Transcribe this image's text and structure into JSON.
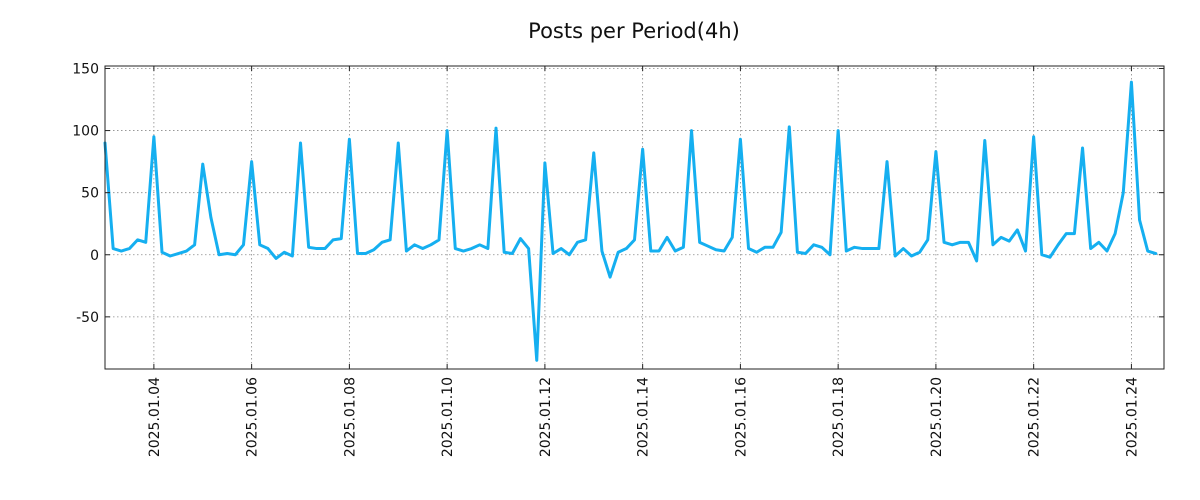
{
  "chart_data": {
    "type": "line",
    "title": "Posts per Period(4h)",
    "xlabel": "",
    "ylabel": "",
    "grid": true,
    "ylim": [
      -92,
      152
    ],
    "yticks": [
      150,
      100,
      50,
      0,
      -50
    ],
    "ytick_labels": [
      "150",
      "100",
      "50",
      "0",
      "-50"
    ],
    "x_start": "2025.01.03 00:00",
    "x_step_hours": 4,
    "xlim_steps": [
      0,
      130
    ],
    "xticks": [
      6,
      18,
      30,
      42,
      54,
      66,
      78,
      90,
      102,
      114,
      126
    ],
    "xtick_labels": [
      "2025.01.04",
      "2025.01.06",
      "2025.01.08",
      "2025.01.10",
      "2025.01.12",
      "2025.01.14",
      "2025.01.16",
      "2025.01.18",
      "2025.01.20",
      "2025.01.22",
      "2025.01.24"
    ],
    "series": [
      {
        "name": "Posts",
        "color": "#15aff0",
        "values": [
          90,
          5,
          3,
          5,
          12,
          10,
          95,
          2,
          -1,
          1,
          3,
          8,
          73,
          30,
          0,
          1,
          0,
          8,
          75,
          8,
          5,
          -3,
          2,
          -1,
          90,
          6,
          5,
          5,
          12,
          13,
          93,
          1,
          1,
          4,
          10,
          12,
          90,
          3,
          8,
          5,
          8,
          12,
          100,
          5,
          3,
          5,
          8,
          5,
          102,
          2,
          1,
          13,
          5,
          -85,
          74,
          1,
          5,
          0,
          10,
          12,
          82,
          3,
          -18,
          2,
          5,
          12,
          85,
          3,
          3,
          14,
          3,
          6,
          100,
          10,
          7,
          4,
          3,
          14,
          93,
          5,
          2,
          6,
          6,
          18,
          103,
          2,
          1,
          8,
          6,
          0,
          100,
          3,
          6,
          5,
          5,
          5,
          75,
          -1,
          5,
          -1,
          2,
          12,
          83,
          10,
          8,
          10,
          10,
          -5,
          92,
          8,
          14,
          11,
          20,
          3,
          95,
          0,
          -2,
          8,
          17,
          17,
          86,
          5,
          10,
          3,
          17,
          50,
          139,
          28,
          3,
          1
        ]
      }
    ]
  }
}
